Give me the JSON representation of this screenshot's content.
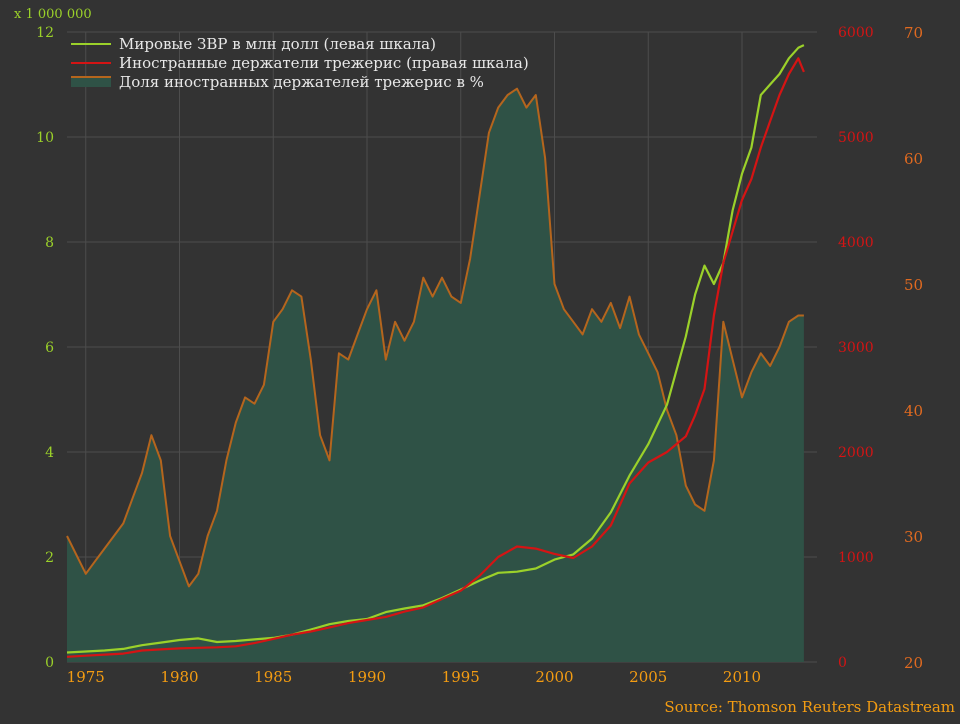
{
  "chart_data": {
    "type": "line",
    "left_axis": {
      "multiplier_label": "x 1 000 000",
      "range": [
        0,
        12
      ],
      "ticks": [
        "0",
        "2",
        "4",
        "6",
        "8",
        "10",
        "12"
      ],
      "color": "#9bd12a"
    },
    "right_axis_1": {
      "range": [
        0,
        6000
      ],
      "ticks": [
        "0",
        "1000",
        "2000",
        "3000",
        "4000",
        "5000",
        "6000"
      ],
      "color": "#d41414"
    },
    "right_axis_2": {
      "range": [
        20,
        70
      ],
      "ticks": [
        "20",
        "30",
        "40",
        "50",
        "60",
        "70"
      ],
      "color": "#e06a20"
    },
    "x_axis": {
      "range": [
        1974,
        2014
      ],
      "ticks": [
        "1975",
        "1980",
        "1985",
        "1990",
        "1995",
        "2000",
        "2005",
        "2010"
      ]
    },
    "grid": true,
    "legend_position": "top-left",
    "source": "Source: Thomson Reuters Datastream",
    "series": [
      {
        "name": "Мировые ЗВР в млн долл (левая шкала)",
        "axis": "left",
        "style": "line",
        "color": "#9bd12a",
        "x": [
          1974,
          1975,
          1976,
          1977,
          1978,
          1979,
          1980,
          1981,
          1982,
          1983,
          1984,
          1985,
          1986,
          1987,
          1988,
          1989,
          1990,
          1991,
          1992,
          1993,
          1994,
          1995,
          1996,
          1997,
          1998,
          1999,
          2000,
          2001,
          2002,
          2003,
          2004,
          2005,
          2006,
          2007,
          2007.5,
          2008,
          2008.5,
          2009,
          2009.5,
          2010,
          2010.5,
          2011,
          2011.5,
          2012,
          2012.5,
          2013,
          2013.3
        ],
        "values": [
          0.18,
          0.2,
          0.22,
          0.25,
          0.32,
          0.37,
          0.42,
          0.45,
          0.38,
          0.4,
          0.43,
          0.46,
          0.52,
          0.62,
          0.72,
          0.78,
          0.82,
          0.95,
          1.02,
          1.08,
          1.22,
          1.38,
          1.55,
          1.7,
          1.72,
          1.78,
          1.95,
          2.05,
          2.35,
          2.85,
          3.55,
          4.15,
          4.9,
          6.2,
          7.0,
          7.55,
          7.2,
          7.6,
          8.6,
          9.3,
          9.8,
          10.8,
          11.0,
          11.2,
          11.5,
          11.7,
          11.75
        ]
      },
      {
        "name": "Иностранные держатели трежерис (правая шкала)",
        "axis": "right_1",
        "style": "line",
        "color": "#d41414",
        "x": [
          1974,
          1975,
          1976,
          1977,
          1978,
          1979,
          1980,
          1981,
          1982,
          1983,
          1984,
          1985,
          1986,
          1987,
          1988,
          1989,
          1990,
          1991,
          1992,
          1993,
          1994,
          1995,
          1996,
          1997,
          1998,
          1999,
          2000,
          2001,
          2002,
          2003,
          2004,
          2005,
          2006,
          2007,
          2007.5,
          2008,
          2008.5,
          2009,
          2009.5,
          2010,
          2010.5,
          2011,
          2011.5,
          2012,
          2012.5,
          2013,
          2013.3
        ],
        "values": [
          50,
          60,
          70,
          80,
          110,
          120,
          130,
          135,
          140,
          150,
          180,
          220,
          260,
          290,
          330,
          370,
          400,
          430,
          480,
          520,
          600,
          680,
          820,
          1000,
          1100,
          1080,
          1030,
          990,
          1100,
          1300,
          1700,
          1900,
          2000,
          2150,
          2350,
          2600,
          3300,
          3800,
          4100,
          4400,
          4600,
          4900,
          5150,
          5400,
          5600,
          5750,
          5620
        ]
      },
      {
        "name": "Доля иностранных держателей трежерис в %",
        "axis": "right_2",
        "style": "area",
        "color": "#b5651d",
        "fill": "#2f5246",
        "x": [
          1974,
          1974.5,
          1975,
          1975.5,
          1976,
          1976.5,
          1977,
          1977.5,
          1978,
          1978.5,
          1979,
          1979.5,
          1980,
          1980.5,
          1981,
          1981.5,
          1982,
          1982.5,
          1983,
          1983.5,
          1984,
          1984.5,
          1985,
          1985.5,
          1986,
          1986.5,
          1987,
          1987.5,
          1988,
          1988.5,
          1989,
          1989.5,
          1990,
          1990.5,
          1991,
          1991.5,
          1992,
          1992.5,
          1993,
          1993.5,
          1994,
          1994.5,
          1995,
          1995.5,
          1996,
          1996.5,
          1997,
          1997.5,
          1998,
          1998.5,
          1999,
          1999.5,
          2000,
          2000.5,
          2001,
          2001.5,
          2002,
          2002.5,
          2003,
          2003.5,
          2004,
          2004.5,
          2005,
          2005.5,
          2006,
          2006.5,
          2007,
          2007.5,
          2008,
          2008.5,
          2009,
          2009.5,
          2010,
          2010.5,
          2011,
          2011.5,
          2012,
          2012.5,
          2013,
          2013.3
        ],
        "values": [
          30,
          28.5,
          27,
          28,
          29,
          30,
          31,
          33,
          35,
          38,
          36,
          30,
          28,
          26,
          27,
          30,
          32,
          36,
          39,
          41,
          40.5,
          42,
          47,
          48,
          49.5,
          49,
          44,
          38,
          36,
          44.5,
          44,
          46,
          48,
          49.5,
          44,
          47,
          45.5,
          47,
          50.5,
          49,
          50.5,
          49,
          48.5,
          52,
          57,
          62,
          64,
          65,
          65.5,
          64,
          65,
          60,
          50,
          48,
          47,
          46,
          48,
          47,
          48.5,
          46.5,
          49,
          46,
          44.5,
          43,
          40,
          38,
          34,
          32.5,
          32,
          36,
          47,
          44,
          41,
          43,
          44.5,
          43.5,
          45,
          47,
          47.5,
          47.5
        ]
      }
    ]
  }
}
